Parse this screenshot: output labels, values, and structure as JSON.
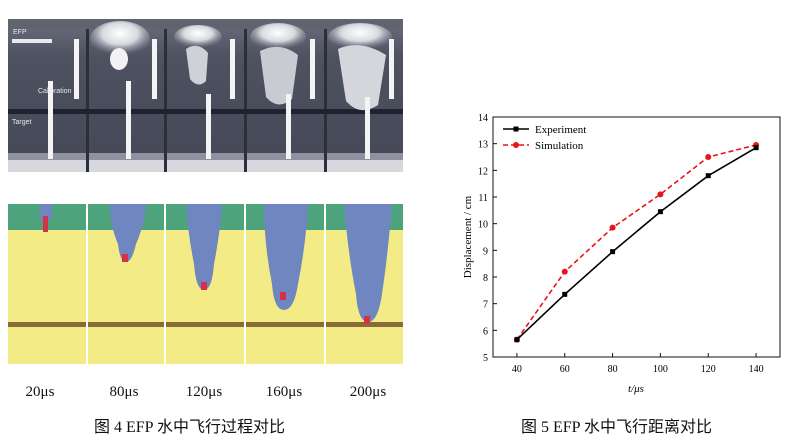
{
  "figure4": {
    "caption": "图  4 EFP 水中飞行过程对比",
    "time_labels": [
      "20μs",
      "80μs",
      "120μs",
      "160μs",
      "200μs"
    ],
    "photo_labels": {
      "efp": "EFP",
      "calibration": "Calibration",
      "target": "Target"
    },
    "colors": {
      "water": "#f3ec86",
      "efp": "#6f86c0",
      "air": "#4da37b",
      "target": "#8a6a36",
      "fragment": "#d6314a"
    }
  },
  "figure5": {
    "caption": "图  5 EFP 水中飞行距离对比"
  },
  "chart_data": {
    "type": "line",
    "xlabel": "t/μs",
    "ylabel": "Displacement / cm",
    "x": [
      40,
      60,
      80,
      100,
      120,
      140
    ],
    "xlim": [
      30,
      150
    ],
    "ylim": [
      5,
      14
    ],
    "xticks": [
      40,
      60,
      80,
      100,
      120,
      140
    ],
    "yticks": [
      5,
      6,
      7,
      8,
      9,
      10,
      11,
      12,
      13,
      14
    ],
    "legend_position": "top-left",
    "series": [
      {
        "name": "Experiment",
        "values": [
          5.65,
          7.35,
          8.95,
          10.45,
          11.8,
          12.85
        ],
        "color": "#000000",
        "style": "solid",
        "marker": "square"
      },
      {
        "name": "Simulation",
        "values": [
          5.65,
          8.2,
          9.85,
          11.1,
          12.5,
          12.95
        ],
        "color": "#e8141c",
        "style": "dashed",
        "marker": "circle"
      }
    ]
  }
}
